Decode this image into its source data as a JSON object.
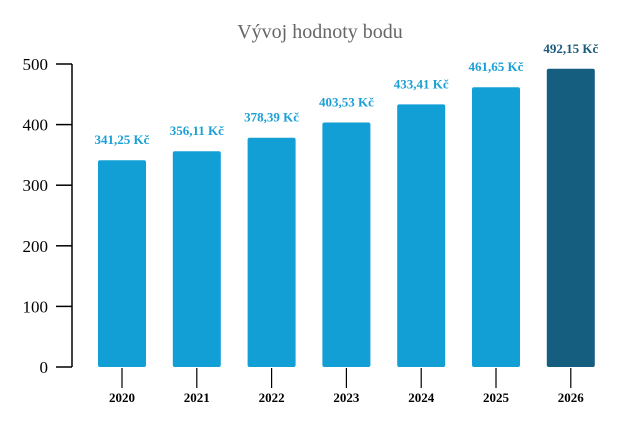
{
  "chart_data": {
    "type": "bar",
    "title": "Vývoj hodnoty bodu",
    "xlabel": "",
    "ylabel": "",
    "categories": [
      "2020",
      "2021",
      "2022",
      "2023",
      "2024",
      "2025",
      "2026"
    ],
    "values": [
      341.25,
      356.11,
      378.39,
      403.53,
      433.41,
      461.65,
      492.15
    ],
    "data_labels": [
      "341,25 Kč",
      "356,11 Kč",
      "378,39 Kč",
      "403,53 Kč",
      "433,41 Kč",
      "461,65 Kč",
      "492,15 Kč"
    ],
    "ylim": [
      0,
      500
    ],
    "yticks": [
      0,
      100,
      200,
      300,
      400,
      500
    ],
    "grid": false,
    "colors": {
      "bar": "#129fd6",
      "highlight_bar": "#165e80",
      "label": "#1a9fd6",
      "highlight_label": "#1a5a7a",
      "title": "#666666"
    },
    "highlight_index": 6
  }
}
